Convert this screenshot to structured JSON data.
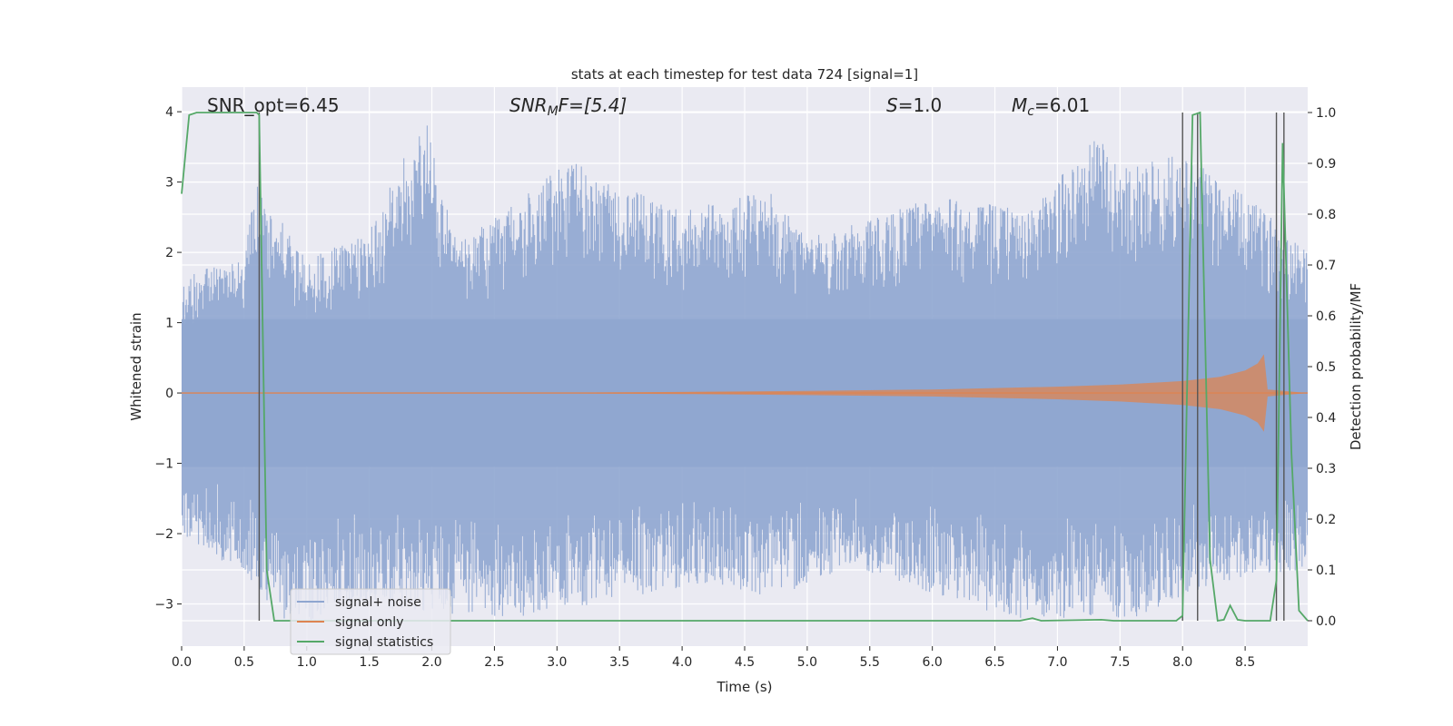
{
  "chart_data": {
    "type": "line",
    "title": "stats at each timestep for test data 724 [signal=1]",
    "xlabel": "Time (s)",
    "ylabel_left": "Whitened strain",
    "ylabel_right": "Detection probability/MF",
    "xlim": [
      0.0,
      9.0
    ],
    "ylim_left": [
      -3.6,
      4.35
    ],
    "ylim_right": [
      -0.05,
      1.05
    ],
    "x_ticks": [
      "0.0",
      "0.5",
      "1.0",
      "1.5",
      "2.0",
      "2.5",
      "3.0",
      "3.5",
      "4.0",
      "4.5",
      "5.0",
      "5.5",
      "6.0",
      "6.5",
      "7.0",
      "7.5",
      "8.0",
      "8.5"
    ],
    "y_ticks_left": [
      "−3",
      "−2",
      "−1",
      "0",
      "1",
      "2",
      "3",
      "4"
    ],
    "y_ticks_right": [
      "0.0",
      "0.1",
      "0.2",
      "0.3",
      "0.4",
      "0.5",
      "0.6",
      "0.7",
      "0.8",
      "0.9",
      "1.0"
    ],
    "grid": true,
    "legend_position": "lower-left",
    "annotations": {
      "snr_opt": "SNR_opt=6.45",
      "snr_mf_base": "SNR",
      "snr_mf_sub": "M",
      "snr_mf_rest": "F=[5.4]",
      "s_var": "S",
      "s_rest": "=1.0",
      "mc_var": "M",
      "mc_sub": "c",
      "mc_rest": "=6.01"
    },
    "series": [
      {
        "name": "signal+ noise",
        "color": "#8fa6d0",
        "axis": "left",
        "description_envelope_upper": [
          [
            0.0,
            1.7
          ],
          [
            0.5,
            1.9
          ],
          [
            0.55,
            2.5
          ],
          [
            0.6,
            3.0
          ],
          [
            1.0,
            1.9
          ],
          [
            1.5,
            2.3
          ],
          [
            1.95,
            4.0
          ],
          [
            2.2,
            2.1
          ],
          [
            3.1,
            3.3
          ],
          [
            4.0,
            2.6
          ],
          [
            4.7,
            2.9
          ],
          [
            5.0,
            2.2
          ],
          [
            6.0,
            2.8
          ],
          [
            6.8,
            2.6
          ],
          [
            7.3,
            3.7
          ],
          [
            7.5,
            3.2
          ],
          [
            8.0,
            3.4
          ],
          [
            8.5,
            2.8
          ],
          [
            9.0,
            2.1
          ]
        ],
        "description_envelope_lower": [
          [
            0.0,
            -2.0
          ],
          [
            0.5,
            -2.6
          ],
          [
            0.9,
            -3.4
          ],
          [
            1.3,
            -3.0
          ],
          [
            1.8,
            -3.1
          ],
          [
            2.7,
            -3.2
          ],
          [
            4.2,
            -2.7
          ],
          [
            4.7,
            -2.9
          ],
          [
            5.4,
            -2.5
          ],
          [
            6.6,
            -3.2
          ],
          [
            7.6,
            -3.2
          ],
          [
            8.3,
            -2.7
          ],
          [
            9.0,
            -2.5
          ]
        ]
      },
      {
        "name": "signal only",
        "color": "#dd8452",
        "axis": "left",
        "envelope": [
          [
            0.0,
            0.0
          ],
          [
            3.0,
            0.005
          ],
          [
            4.0,
            0.015
          ],
          [
            5.0,
            0.03
          ],
          [
            6.0,
            0.05
          ],
          [
            7.0,
            0.09
          ],
          [
            7.5,
            0.12
          ],
          [
            8.0,
            0.17
          ],
          [
            8.3,
            0.23
          ],
          [
            8.5,
            0.32
          ],
          [
            8.6,
            0.42
          ],
          [
            8.65,
            0.55
          ],
          [
            8.68,
            0.05
          ],
          [
            9.0,
            0.0
          ]
        ]
      },
      {
        "name": "signal statistics",
        "color": "#55a868",
        "axis": "right",
        "points": [
          [
            0.0,
            0.84
          ],
          [
            0.06,
            0.995
          ],
          [
            0.12,
            1.0
          ],
          [
            0.6,
            1.0
          ],
          [
            0.62,
            0.995
          ],
          [
            0.68,
            0.1
          ],
          [
            0.74,
            0.0
          ],
          [
            6.7,
            0.0
          ],
          [
            6.8,
            0.005
          ],
          [
            6.87,
            0.0
          ],
          [
            7.35,
            0.002
          ],
          [
            7.45,
            0.0
          ],
          [
            7.95,
            0.0
          ],
          [
            8.0,
            0.01
          ],
          [
            8.08,
            0.995
          ],
          [
            8.14,
            1.0
          ],
          [
            8.22,
            0.12
          ],
          [
            8.28,
            0.0
          ],
          [
            8.33,
            0.002
          ],
          [
            8.38,
            0.03
          ],
          [
            8.44,
            0.002
          ],
          [
            8.5,
            0.0
          ],
          [
            8.7,
            0.0
          ],
          [
            8.75,
            0.08
          ],
          [
            8.8,
            0.94
          ],
          [
            8.87,
            0.33
          ],
          [
            8.93,
            0.02
          ],
          [
            9.0,
            0.0
          ]
        ]
      }
    ],
    "vertical_lines_x": [
      0.62,
      8.0,
      8.12,
      8.75,
      8.81
    ]
  }
}
